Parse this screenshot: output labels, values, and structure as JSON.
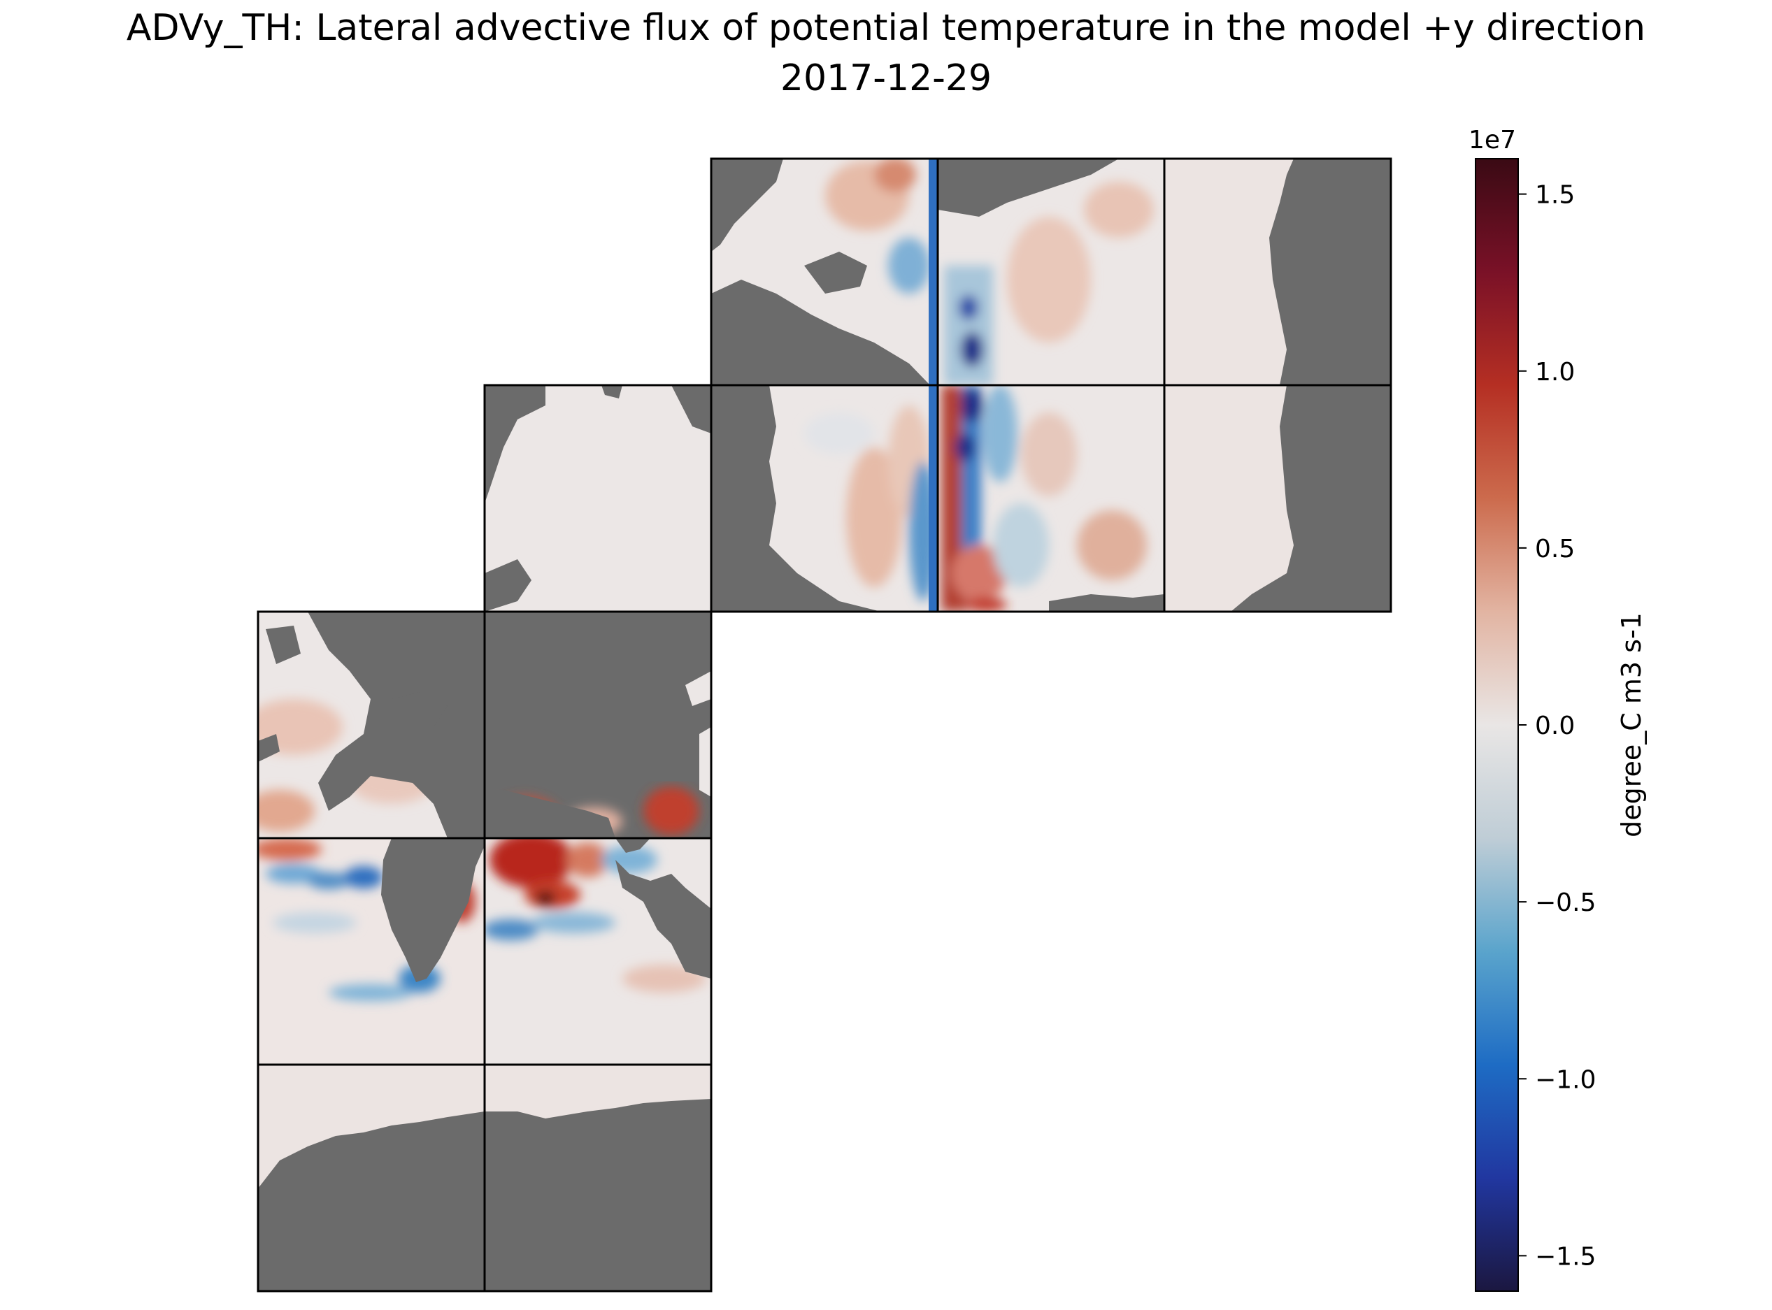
{
  "title": "ADVy_TH: Lateral advective flux of potential temperature in the model +y direction",
  "subtitle": "2017-12-29",
  "colorbar": {
    "label": "degree_C m3 s-1",
    "offset_label": "1e7",
    "min": -1.6,
    "max": 1.6,
    "ticks": [
      {
        "value": 1.5,
        "label": "1.5"
      },
      {
        "value": 1.0,
        "label": "1.0"
      },
      {
        "value": 0.5,
        "label": "0.5"
      },
      {
        "value": 0.0,
        "label": "0.0"
      },
      {
        "value": -0.5,
        "label": "−0.5"
      },
      {
        "value": -1.0,
        "label": "−1.0"
      },
      {
        "value": -1.5,
        "label": "−1.5"
      }
    ],
    "colormap_stops": [
      "#1b1740",
      "#2137a0",
      "#1e6cc4",
      "#5aa4cc",
      "#bfcdd6",
      "#e9e6e5",
      "#e2b4a2",
      "#cc6b4d",
      "#b52f23",
      "#7a1127",
      "#3a0a14"
    ]
  },
  "map": {
    "type": "lat-lon faceted heatmap",
    "land_color": "#6b6b6b",
    "ocean_neutral_color": "#ece7e6"
  }
}
